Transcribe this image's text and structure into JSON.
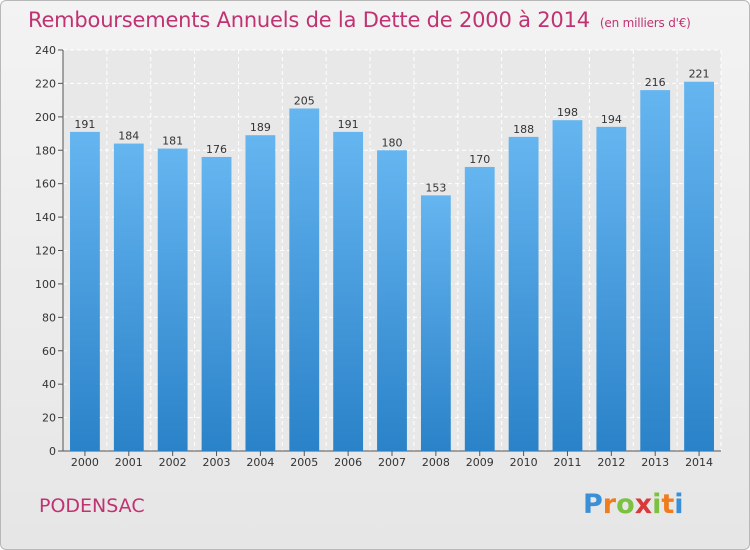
{
  "header": {
    "title": "Remboursements Annuels de la Dette de 2000 à 2014",
    "unit": "(en milliers d'€)"
  },
  "footer": {
    "commune": "PODENSAC",
    "logo": [
      "P",
      "r",
      "o",
      "x",
      "i",
      "t",
      "i"
    ]
  },
  "colors": {
    "title": "#c03272",
    "bar_light": "#65b5f0",
    "bar_dark": "#2a82c8",
    "grid": "#ffffff",
    "logo": [
      "#3a8fd6",
      "#f07c1e",
      "#7cc142",
      "#d83a3a",
      "#7cc142",
      "#f07c1e",
      "#3a8fd6"
    ]
  },
  "chart_data": {
    "type": "bar",
    "title": "Remboursements Annuels de la Dette de 2000 à 2014",
    "xlabel": "",
    "ylabel": "",
    "categories": [
      "2000",
      "2001",
      "2002",
      "2003",
      "2004",
      "2005",
      "2006",
      "2007",
      "2008",
      "2009",
      "2010",
      "2011",
      "2012",
      "2013",
      "2014"
    ],
    "values": [
      191,
      184,
      181,
      176,
      189,
      205,
      191,
      180,
      153,
      170,
      188,
      198,
      194,
      216,
      221
    ],
    "ylim": [
      0,
      240
    ],
    "yticks": [
      0,
      20,
      40,
      60,
      80,
      100,
      120,
      140,
      160,
      180,
      200,
      220,
      240
    ],
    "grid": true,
    "data_labels": true
  }
}
